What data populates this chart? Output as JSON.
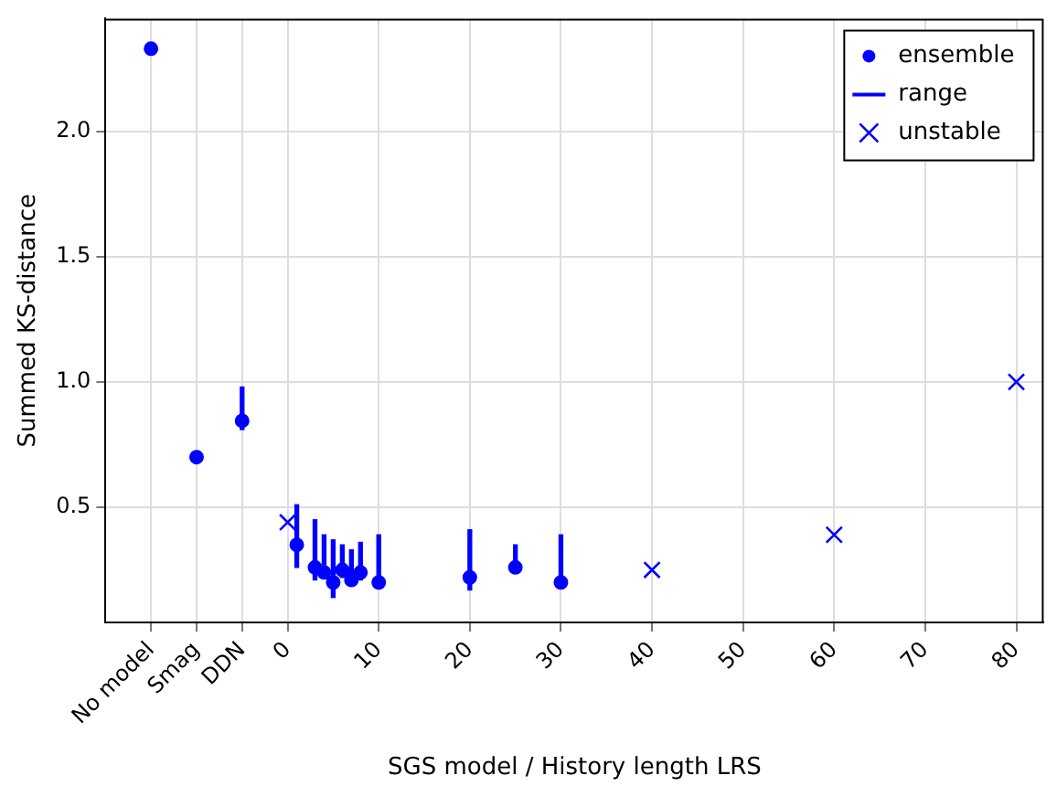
{
  "chart_data": {
    "type": "scatter",
    "xlabel": "SGS model / History length LRS",
    "ylabel": "Summed KS-distance",
    "xlim": [
      -20,
      83
    ],
    "ylim": [
      0.04,
      2.45
    ],
    "xticks": [
      {
        "value": -15,
        "label": "No model"
      },
      {
        "value": -10,
        "label": "Smag"
      },
      {
        "value": -5,
        "label": "DDN"
      },
      0,
      10,
      20,
      30,
      40,
      50,
      60,
      70,
      80
    ],
    "yticks": [
      {
        "value": 0.5,
        "label": "0.5"
      },
      {
        "value": 1,
        "label": "1.0"
      },
      {
        "value": 1.5,
        "label": "1.5"
      },
      {
        "value": 2,
        "label": "2.0"
      }
    ],
    "grid": true,
    "legend": "top right",
    "series": [
      {
        "name": "ensemble",
        "marker": "circle",
        "color": "#0000ff",
        "x": [
          -15,
          -10,
          -5,
          1,
          3,
          4,
          5,
          6,
          7,
          8,
          10,
          20,
          25,
          30
        ],
        "values": [
          2.33,
          0.7,
          0.845,
          0.35,
          0.26,
          0.24,
          0.2,
          0.25,
          0.21,
          0.24,
          0.2,
          0.22,
          0.26,
          0.2
        ]
      },
      {
        "name": "range",
        "type": "bar",
        "color": "#0000ff",
        "x": [
          -5,
          1,
          3,
          4,
          5,
          6,
          7,
          8,
          10,
          20,
          25,
          30
        ],
        "base": [
          0.81,
          0.26,
          0.21,
          0.27,
          0.14,
          0.22,
          0.2,
          0.21,
          0.2,
          0.17,
          0.24,
          0.18
        ],
        "values": [
          0.17,
          0.25,
          0.24,
          0.12,
          0.23,
          0.13,
          0.13,
          0.15,
          0.19,
          0.24,
          0.11,
          0.21
        ]
      },
      {
        "name": "unstable",
        "marker": "cross",
        "color": "#0000ff",
        "x": [
          0,
          40,
          60,
          80
        ],
        "values": [
          0.44,
          0.25,
          0.39,
          1.0
        ]
      }
    ]
  }
}
